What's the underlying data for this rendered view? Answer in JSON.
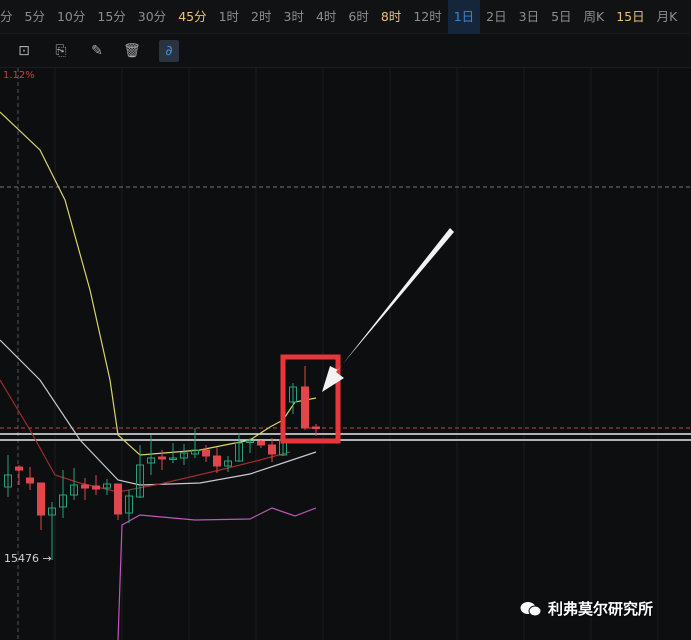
{
  "timeframes": [
    {
      "label": "分",
      "state": "normal"
    },
    {
      "label": "5分",
      "state": "normal"
    },
    {
      "label": "10分",
      "state": "normal"
    },
    {
      "label": "15分",
      "state": "normal"
    },
    {
      "label": "30分",
      "state": "normal"
    },
    {
      "label": "45分",
      "state": "highlight"
    },
    {
      "label": "1时",
      "state": "normal"
    },
    {
      "label": "2时",
      "state": "normal"
    },
    {
      "label": "3时",
      "state": "normal"
    },
    {
      "label": "4时",
      "state": "normal"
    },
    {
      "label": "6时",
      "state": "normal"
    },
    {
      "label": "8时",
      "state": "highlight"
    },
    {
      "label": "12时",
      "state": "normal"
    },
    {
      "label": "1日",
      "state": "selected"
    },
    {
      "label": "2日",
      "state": "normal"
    },
    {
      "label": "3日",
      "state": "normal"
    },
    {
      "label": "5日",
      "state": "normal"
    },
    {
      "label": "周K",
      "state": "normal"
    },
    {
      "label": "15日",
      "state": "highlight"
    },
    {
      "label": "月K",
      "state": "normal"
    }
  ],
  "toolbar": {
    "icons": [
      "lock-icon",
      "bookmark-icon",
      "edit-note-icon",
      "trash-icon",
      "magnet-icon"
    ],
    "active": "magnet-icon"
  },
  "chart": {
    "change_label": "1.12%",
    "low_label": "15476 →"
  },
  "colors": {
    "up": "#26a17b",
    "down": "#e0474c",
    "annotation_box": "#e8373a",
    "accent": "#3b82d6"
  },
  "watermark": {
    "text": "利弗莫尔研究所"
  }
}
